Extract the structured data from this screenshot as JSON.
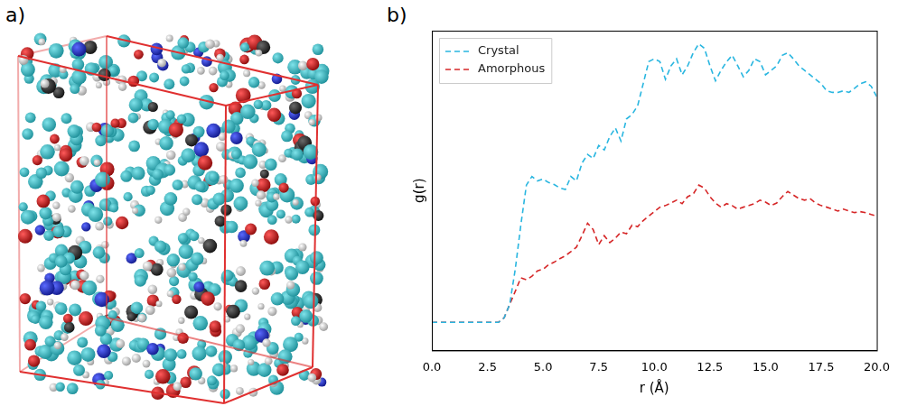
{
  "panel_labels": [
    "a)",
    "b)"
  ],
  "chart_data": {
    "type": "line",
    "x_label": "r (Å)",
    "y_label": "g(r)",
    "x": [
      0,
      0.25,
      0.5,
      0.75,
      1,
      1.25,
      1.5,
      1.75,
      2,
      2.25,
      2.5,
      2.75,
      3,
      3.25,
      3.5,
      3.75,
      4,
      4.25,
      4.5,
      4.75,
      5,
      5.25,
      5.5,
      5.75,
      6,
      6.25,
      6.5,
      6.75,
      7,
      7.25,
      7.5,
      7.75,
      8,
      8.25,
      8.5,
      8.75,
      9,
      9.25,
      9.5,
      9.75,
      10,
      10.25,
      10.5,
      10.75,
      11,
      11.25,
      11.5,
      11.75,
      12,
      12.25,
      12.5,
      12.75,
      13,
      13.25,
      13.5,
      13.75,
      14,
      14.25,
      14.5,
      14.75,
      15,
      15.25,
      15.5,
      15.75,
      16,
      16.25,
      16.5,
      16.75,
      17,
      17.25,
      17.5,
      17.75,
      18,
      18.25,
      18.5,
      18.75,
      19,
      19.25,
      19.5,
      19.75,
      20
    ],
    "series": [
      {
        "name": "Crystal",
        "color": "#29b6e0",
        "line_style": "dashed",
        "values": [
          0.088,
          0.088,
          0.088,
          0.088,
          0.088,
          0.088,
          0.088,
          0.088,
          0.088,
          0.088,
          0.088,
          0.088,
          0.088,
          0.102,
          0.144,
          0.254,
          0.392,
          0.517,
          0.544,
          0.53,
          0.536,
          0.525,
          0.519,
          0.508,
          0.503,
          0.544,
          0.53,
          0.586,
          0.613,
          0.6,
          0.641,
          0.627,
          0.669,
          0.696,
          0.655,
          0.724,
          0.738,
          0.765,
          0.834,
          0.903,
          0.912,
          0.903,
          0.848,
          0.89,
          0.912,
          0.862,
          0.89,
          0.931,
          0.959,
          0.945,
          0.89,
          0.843,
          0.876,
          0.903,
          0.923,
          0.89,
          0.856,
          0.876,
          0.912,
          0.903,
          0.862,
          0.876,
          0.89,
          0.923,
          0.931,
          0.912,
          0.89,
          0.876,
          0.862,
          0.848,
          0.834,
          0.812,
          0.807,
          0.807,
          0.812,
          0.807,
          0.82,
          0.834,
          0.84,
          0.826,
          0.793
        ]
      },
      {
        "name": "Amorphous",
        "color": "#d62728",
        "line_style": "dashed",
        "values": [
          0.088,
          0.088,
          0.088,
          0.088,
          0.088,
          0.088,
          0.088,
          0.088,
          0.088,
          0.088,
          0.088,
          0.088,
          0.088,
          0.102,
          0.144,
          0.185,
          0.227,
          0.221,
          0.232,
          0.249,
          0.254,
          0.268,
          0.276,
          0.287,
          0.296,
          0.309,
          0.323,
          0.359,
          0.398,
          0.378,
          0.331,
          0.359,
          0.337,
          0.351,
          0.37,
          0.365,
          0.392,
          0.387,
          0.406,
          0.42,
          0.434,
          0.448,
          0.453,
          0.461,
          0.47,
          0.459,
          0.481,
          0.489,
          0.517,
          0.508,
          0.481,
          0.461,
          0.448,
          0.459,
          0.453,
          0.442,
          0.448,
          0.453,
          0.459,
          0.47,
          0.464,
          0.453,
          0.461,
          0.481,
          0.497,
          0.486,
          0.475,
          0.47,
          0.475,
          0.461,
          0.453,
          0.448,
          0.442,
          0.436,
          0.442,
          0.436,
          0.431,
          0.434,
          0.431,
          0.425,
          0.42
        ]
      }
    ],
    "xlim": [
      0,
      20
    ],
    "xticks": [
      {
        "value": 0,
        "label": "0.0"
      },
      {
        "value": 2.5,
        "label": "2.5"
      },
      {
        "value": 5,
        "label": "5.0"
      },
      {
        "value": 7.5,
        "label": "7.5"
      },
      {
        "value": 10,
        "label": "10.0"
      },
      {
        "value": 12.5,
        "label": "12.5"
      },
      {
        "value": 15,
        "label": "15.0"
      },
      {
        "value": 17.5,
        "label": "17.5"
      },
      {
        "value": 20,
        "label": "20.0"
      }
    ],
    "ylim": [
      0,
      1
    ],
    "tick_labels": "x",
    "grid": false,
    "legend": "upper left"
  }
}
